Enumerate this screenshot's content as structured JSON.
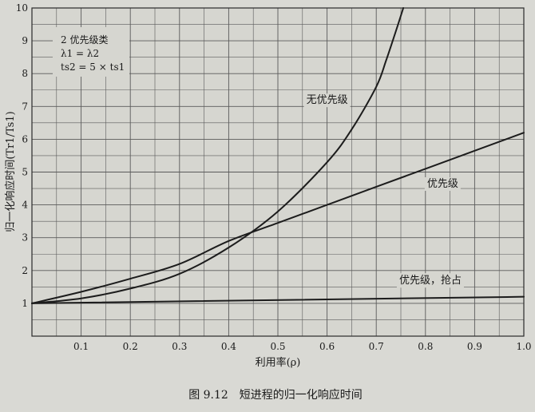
{
  "chart_data": {
    "type": "line",
    "caption": "图 9.12　短进程的归一化响应时间",
    "xlabel": "利用率(ρ)",
    "ylabel": "归一化响应时间(Tr1/Ts1)",
    "xlim": [
      0,
      1.0
    ],
    "ylim": [
      0,
      10
    ],
    "x_ticks": [
      "0.1",
      "0.2",
      "0.3",
      "0.4",
      "0.5",
      "0.6",
      "0.7",
      "0.8",
      "0.9",
      "1.0"
    ],
    "y_ticks": [
      "1",
      "2",
      "3",
      "4",
      "5",
      "6",
      "7",
      "8",
      "9",
      "10"
    ],
    "grid": true,
    "legend_box": {
      "line1": "2 优先级类",
      "line2": "λ1 = λ2",
      "line3": "ts2 = 5 × ts1"
    },
    "series": [
      {
        "name": "无优先级",
        "x": [
          0,
          0.1,
          0.2,
          0.3,
          0.4,
          0.5,
          0.6,
          0.65,
          0.7,
          0.72,
          0.74,
          0.755
        ],
        "y": [
          1.0,
          1.15,
          1.45,
          1.9,
          2.7,
          3.8,
          5.3,
          6.3,
          7.6,
          8.4,
          9.3,
          10.0
        ]
      },
      {
        "name": "优先级",
        "x": [
          0,
          0.1,
          0.2,
          0.3,
          0.4,
          0.5,
          0.6,
          0.7,
          0.8,
          0.9,
          1.0
        ],
        "y": [
          1.0,
          1.35,
          1.75,
          2.2,
          2.9,
          3.45,
          4.0,
          4.55,
          5.1,
          5.65,
          6.2
        ]
      },
      {
        "name": "优先级，抢占",
        "x": [
          0,
          1.0
        ],
        "y": [
          1.0,
          1.2
        ]
      }
    ],
    "label_positions": {
      "无优先级": [
        0.6,
        7.1
      ],
      "优先级": [
        0.835,
        4.55
      ],
      "优先级，抢占": [
        0.81,
        1.6
      ]
    }
  }
}
